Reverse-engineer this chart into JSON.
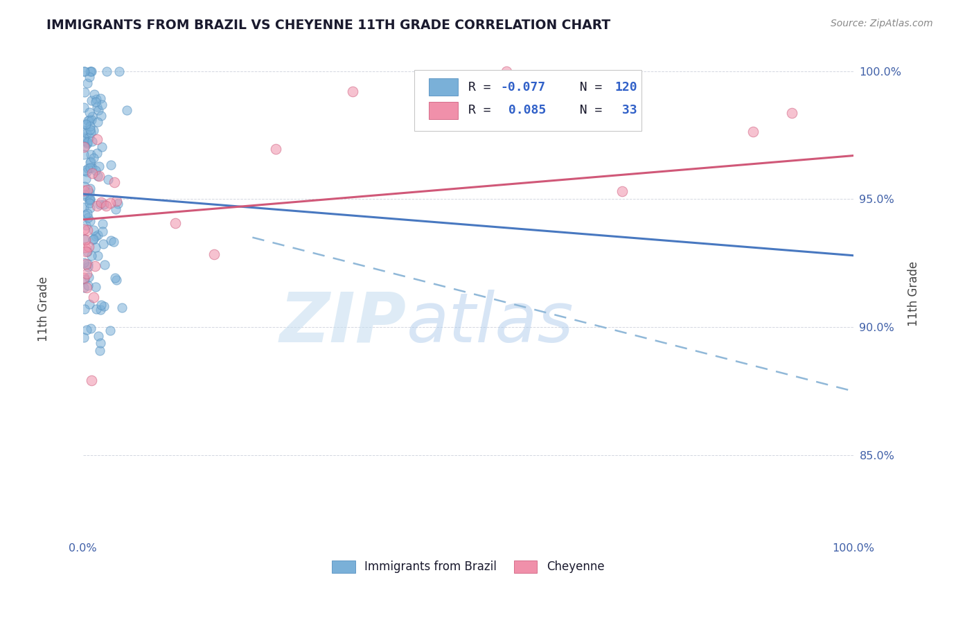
{
  "title": "IMMIGRANTS FROM BRAZIL VS CHEYENNE 11TH GRADE CORRELATION CHART",
  "source_text": "Source: ZipAtlas.com",
  "ylabel": "11th Grade",
  "ytick_labels": [
    "85.0%",
    "90.0%",
    "95.0%",
    "100.0%"
  ],
  "ytick_values": [
    0.85,
    0.9,
    0.95,
    1.0
  ],
  "xlim": [
    0.0,
    1.0
  ],
  "ylim": [
    0.818,
    1.008
  ],
  "brazil_color": "#7ab0d8",
  "brazil_edge_color": "#5590c0",
  "cheyenne_color": "#f090aa",
  "cheyenne_edge_color": "#d06080",
  "brazil_trend_color": "#4878c0",
  "cheyenne_trend_color": "#d05878",
  "brazil_dashed_color": "#90b8d8",
  "watermark_zip_color": "#c8dff0",
  "watermark_atlas_color": "#b0ccec",
  "background_color": "#ffffff",
  "grid_color": "#c8ccd8",
  "tick_color": "#4060a8",
  "title_color": "#1a1a2e",
  "source_color": "#888888",
  "ylabel_color": "#444444",
  "legend_box_edge": "#c8c8c8",
  "legend_text_color": "#1a1a2e",
  "legend_value_color": "#3060c8"
}
